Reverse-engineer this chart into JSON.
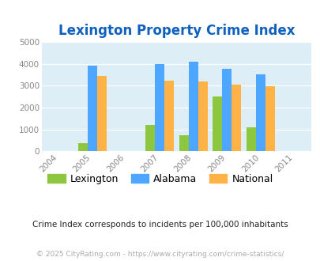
{
  "title": "Lexington Property Crime Index",
  "title_color": "#1060c0",
  "all_years": [
    2004,
    2005,
    2006,
    2007,
    2008,
    2009,
    2010,
    2011
  ],
  "data_years": [
    2005,
    2007,
    2008,
    2009,
    2010
  ],
  "lexington": [
    380,
    1220,
    740,
    2490,
    1080
  ],
  "alabama": [
    3900,
    3970,
    4080,
    3760,
    3500
  ],
  "national": [
    3430,
    3230,
    3200,
    3040,
    2960
  ],
  "bar_colors": {
    "lexington": "#8dc63f",
    "alabama": "#4da6ff",
    "national": "#ffb347"
  },
  "ylim": [
    0,
    5000
  ],
  "yticks": [
    0,
    1000,
    2000,
    3000,
    4000,
    5000
  ],
  "bg_color": "#ddeef6",
  "outer_bg": "#ffffff",
  "legend_labels": [
    "Lexington",
    "Alabama",
    "National"
  ],
  "footnote1": "Crime Index corresponds to incidents per 100,000 inhabitants",
  "footnote2": "© 2025 CityRating.com - https://www.cityrating.com/crime-statistics/",
  "bar_width": 0.28
}
